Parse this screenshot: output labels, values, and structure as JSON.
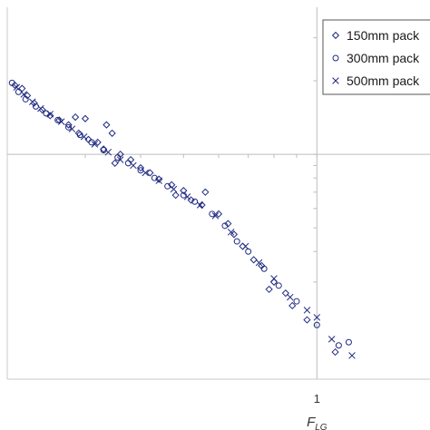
{
  "chart_data": {
    "type": "scatter",
    "title": "",
    "xlabel": "F",
    "xlabel_sub": "LG",
    "ylabel": "",
    "x_scale": "log",
    "y_scale": "log",
    "xlim": [
      0.2,
      1.8
    ],
    "ylim": [
      0.12,
      4.0
    ],
    "x_ticks": [
      {
        "value": 1,
        "label": "1"
      }
    ],
    "major_x_gridlines": [
      1
    ],
    "major_y_gridlines": [
      1
    ],
    "grid": true,
    "legend_position": "top-right",
    "marker_color": "#1f2a80",
    "series": [
      {
        "name": "150mm pack",
        "marker": "diamond",
        "points": [
          [
            0.208,
            1.92
          ],
          [
            0.216,
            1.86
          ],
          [
            0.222,
            1.74
          ],
          [
            0.23,
            1.62
          ],
          [
            0.24,
            1.52
          ],
          [
            0.25,
            1.44
          ],
          [
            0.262,
            1.38
          ],
          [
            0.275,
            1.32
          ],
          [
            0.285,
            1.42
          ],
          [
            0.3,
            1.4
          ],
          [
            0.29,
            1.22
          ],
          [
            0.305,
            1.15
          ],
          [
            0.32,
            1.12
          ],
          [
            0.335,
            1.32
          ],
          [
            0.345,
            1.22
          ],
          [
            0.33,
            1.05
          ],
          [
            0.36,
            1.0
          ],
          [
            0.38,
            0.95
          ],
          [
            0.35,
            0.92
          ],
          [
            0.4,
            0.88
          ],
          [
            0.42,
            0.84
          ],
          [
            0.44,
            0.79
          ],
          [
            0.47,
            0.75
          ],
          [
            0.5,
            0.71
          ],
          [
            0.48,
            0.68
          ],
          [
            0.52,
            0.65
          ],
          [
            0.55,
            0.62
          ],
          [
            0.6,
            0.57
          ],
          [
            0.63,
            0.52
          ],
          [
            0.56,
            0.7
          ],
          [
            0.65,
            0.47
          ],
          [
            0.68,
            0.42
          ],
          [
            0.72,
            0.37
          ],
          [
            0.75,
            0.35
          ],
          [
            0.8,
            0.3
          ],
          [
            0.85,
            0.27
          ],
          [
            0.78,
            0.28
          ],
          [
            0.88,
            0.24
          ],
          [
            0.95,
            0.21
          ],
          [
            1.1,
            0.155
          ]
        ]
      },
      {
        "name": "300mm pack",
        "marker": "circle",
        "points": [
          [
            0.205,
            1.96
          ],
          [
            0.212,
            1.8
          ],
          [
            0.22,
            1.68
          ],
          [
            0.232,
            1.57
          ],
          [
            0.245,
            1.47
          ],
          [
            0.26,
            1.38
          ],
          [
            0.275,
            1.29
          ],
          [
            0.292,
            1.2
          ],
          [
            0.31,
            1.12
          ],
          [
            0.33,
            1.04
          ],
          [
            0.355,
            0.97
          ],
          [
            0.375,
            0.92
          ],
          [
            0.4,
            0.86
          ],
          [
            0.43,
            0.8
          ],
          [
            0.46,
            0.74
          ],
          [
            0.5,
            0.68
          ],
          [
            0.53,
            0.64
          ],
          [
            0.58,
            0.57
          ],
          [
            0.62,
            0.51
          ],
          [
            0.66,
            0.44
          ],
          [
            0.7,
            0.4
          ],
          [
            0.76,
            0.34
          ],
          [
            0.82,
            0.29
          ],
          [
            0.9,
            0.25
          ],
          [
            1.0,
            0.2
          ],
          [
            1.12,
            0.165
          ],
          [
            1.18,
            0.17
          ]
        ]
      },
      {
        "name": "500mm pack",
        "marker": "x",
        "points": [
          [
            0.21,
            1.88
          ],
          [
            0.218,
            1.76
          ],
          [
            0.228,
            1.64
          ],
          [
            0.238,
            1.54
          ],
          [
            0.25,
            1.46
          ],
          [
            0.265,
            1.36
          ],
          [
            0.28,
            1.27
          ],
          [
            0.298,
            1.18
          ],
          [
            0.315,
            1.1
          ],
          [
            0.338,
            1.02
          ],
          [
            0.36,
            0.95
          ],
          [
            0.385,
            0.9
          ],
          [
            0.41,
            0.84
          ],
          [
            0.44,
            0.78
          ],
          [
            0.475,
            0.72
          ],
          [
            0.51,
            0.67
          ],
          [
            0.545,
            0.62
          ],
          [
            0.59,
            0.56
          ],
          [
            0.64,
            0.48
          ],
          [
            0.69,
            0.42
          ],
          [
            0.74,
            0.36
          ],
          [
            0.8,
            0.31
          ],
          [
            0.87,
            0.26
          ],
          [
            0.95,
            0.23
          ],
          [
            1.0,
            0.215
          ],
          [
            1.08,
            0.175
          ],
          [
            1.2,
            0.15
          ]
        ]
      }
    ]
  }
}
